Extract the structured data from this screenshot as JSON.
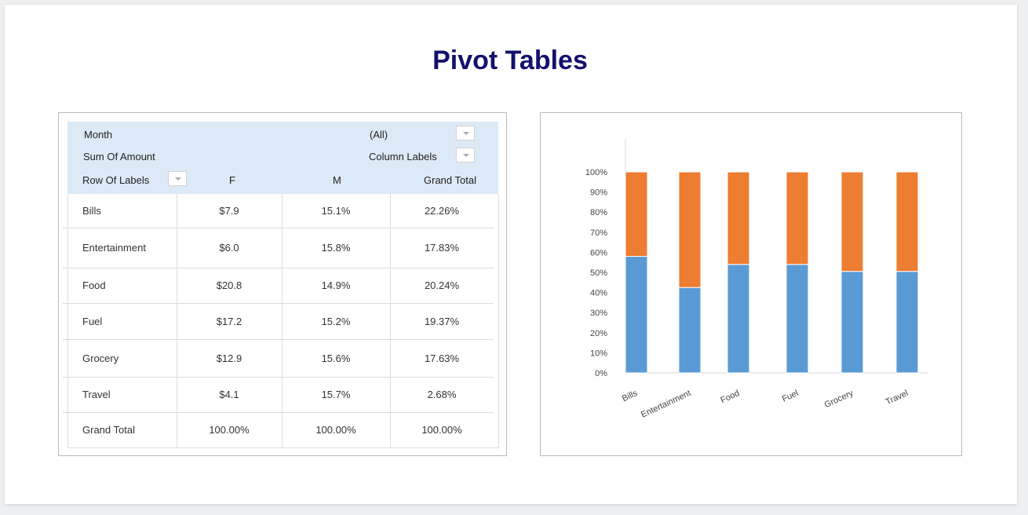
{
  "page": {
    "title": "Pivot Tables"
  },
  "pivot": {
    "filter_label": "Month",
    "filter_value": "(All)",
    "value_label": "Sum Of Amount",
    "column_labels": "Column Labels",
    "row_labels": "Row Of Labels",
    "columns": [
      "F",
      "M",
      "Grand Total"
    ],
    "rows": [
      {
        "label": "Bills",
        "f": "$7.9",
        "m": "15.1%",
        "total": "22.26%"
      },
      {
        "label": "Entertainment",
        "f": "$6.0",
        "m": "15.8%",
        "total": "17.83%"
      },
      {
        "label": "Food",
        "f": "$20.8",
        "m": "14.9%",
        "total": "20.24%"
      },
      {
        "label": "Fuel",
        "f": "$17.2",
        "m": "15.2%",
        "total": "19.37%"
      },
      {
        "label": "Grocery",
        "f": "$12.9",
        "m": "15.6%",
        "total": "17.63%"
      },
      {
        "label": "Travel",
        "f": "$4.1",
        "m": "15.7%",
        "total": "2.68%"
      },
      {
        "label": "Grand Total",
        "f": "100.00%",
        "m": "100.00%",
        "total": "100.00%"
      }
    ]
  },
  "chart_data": {
    "type": "bar",
    "stacked": true,
    "normalized": true,
    "categories": [
      "Bills",
      "Entertainment",
      "Food",
      "Fuel",
      "Grocery",
      "Travel"
    ],
    "series": [
      {
        "values": [
          58,
          42.5,
          54,
          54,
          50.5,
          50.5
        ],
        "color": "#5b9bd5"
      },
      {
        "values": [
          42,
          57.5,
          46,
          46,
          49.5,
          49.5
        ],
        "color": "#ed7d31"
      }
    ],
    "y_ticks": [
      "0%",
      "10%",
      "20%",
      "30%",
      "40%",
      "50%",
      "60%",
      "70%",
      "80%",
      "90%",
      "100%"
    ],
    "ylim": [
      0,
      100
    ],
    "xlabel": "",
    "ylabel": "",
    "grid": false,
    "legend": "none"
  }
}
